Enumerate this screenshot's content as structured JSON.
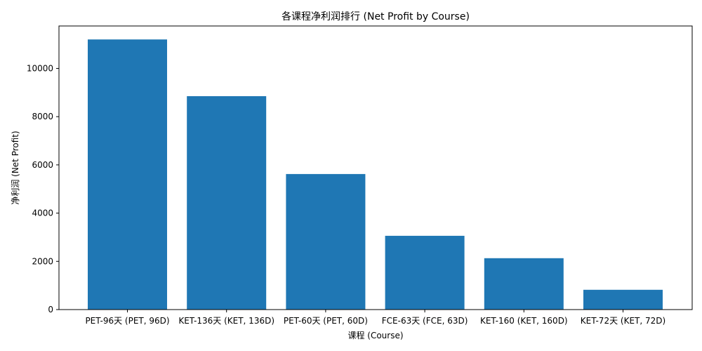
{
  "chart_data": {
    "type": "bar",
    "title": "各课程净利润排行 (Net Profit by Course)",
    "xlabel": "课程 (Course)",
    "ylabel": "净利润 (Net Profit)",
    "categories": [
      "PET-96天 (PET, 96D)",
      "KET-136天 (KET, 136D)",
      "PET-60天 (PET, 60D)",
      "FCE-63天 (FCE, 63D)",
      "KET-160 (KET, 160D)",
      "KET-72天 (KET, 72D)"
    ],
    "values": [
      11200,
      8850,
      5620,
      3060,
      2130,
      820
    ],
    "ylim": [
      0,
      11760
    ],
    "yticks": [
      0,
      2000,
      4000,
      6000,
      8000,
      10000
    ],
    "bar_color": "#1f77b4",
    "grid": false,
    "legend": "none"
  }
}
